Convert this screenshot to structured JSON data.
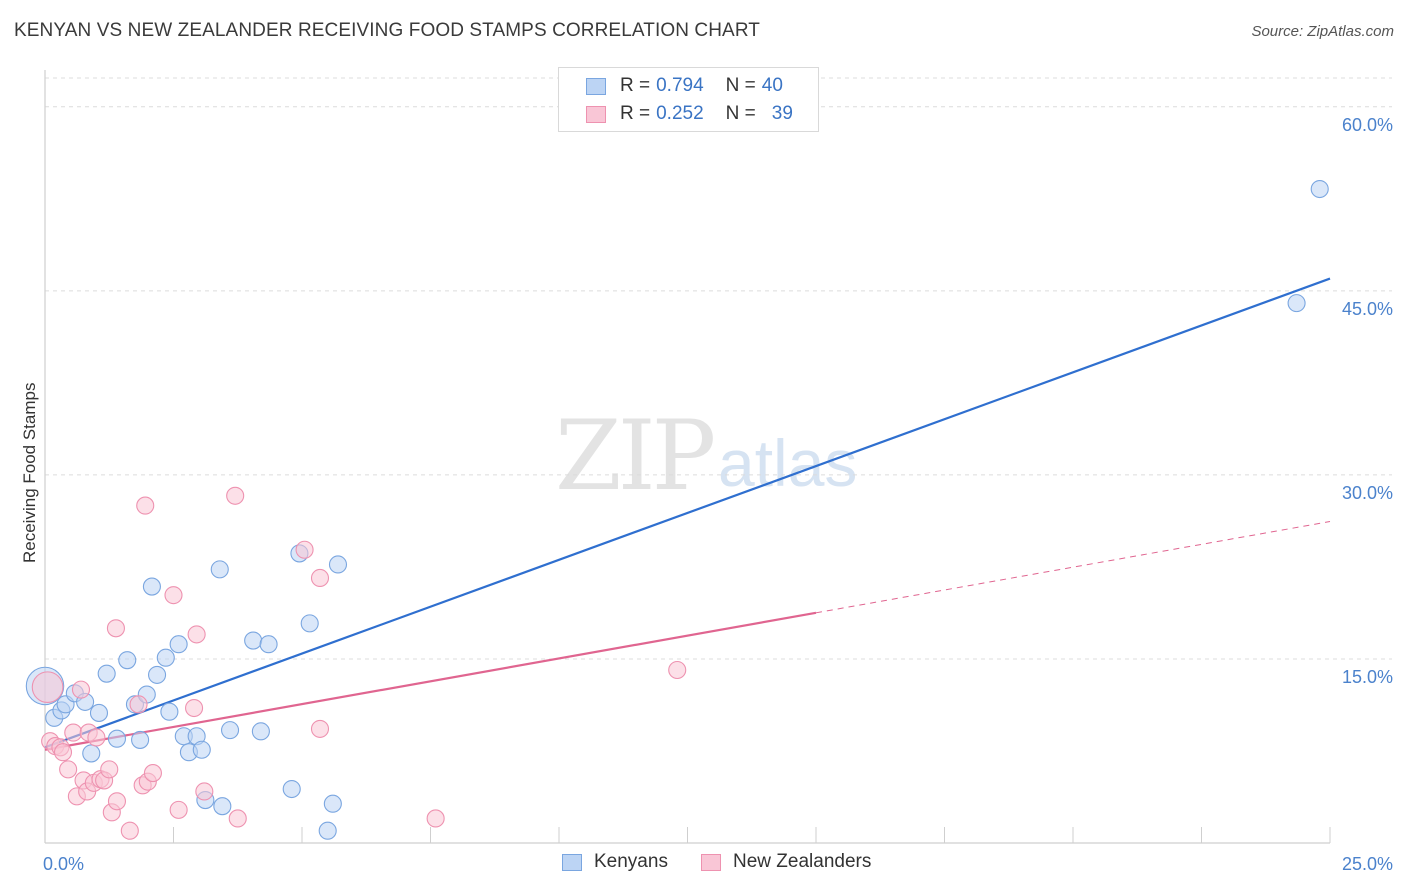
{
  "header": {
    "title": "KENYAN VS NEW ZEALANDER RECEIVING FOOD STAMPS CORRELATION CHART",
    "source": "Source: ZipAtlas.com"
  },
  "watermark": {
    "zip": "ZIP",
    "atlas": "atlas"
  },
  "legend": {
    "series": [
      {
        "r_label": "R = ",
        "r_value": "0.794",
        "n_label": "N = ",
        "n_value": "40"
      },
      {
        "r_label": "R = ",
        "r_value": "0.252",
        "n_label": "N = ",
        "n_value": "39"
      }
    ]
  },
  "colors": {
    "kenyans_fill": "#bcd4f4",
    "kenyans_stroke": "#7aa6e0",
    "kenyans_line": "#2f6fcf",
    "nz_fill": "#f9c6d6",
    "nz_stroke": "#ee92b0",
    "nz_line": "#e06590",
    "tick_label": "#4b82cc",
    "grid": "#dcdcdc"
  },
  "chart_data": {
    "type": "scatter",
    "title": "KENYAN VS NEW ZEALANDER RECEIVING FOOD STAMPS CORRELATION CHART",
    "xlabel": "",
    "ylabel": "Receiving Food Stamps",
    "xlim": [
      0,
      25
    ],
    "ylim": [
      0,
      63
    ],
    "x_tick_labels": [
      "0.0%",
      "25.0%"
    ],
    "y_ticks": [
      15,
      30,
      45,
      60
    ],
    "y_tick_labels": [
      "15.0%",
      "30.0%",
      "45.0%",
      "60.0%"
    ],
    "legend_bottom": [
      "Kenyans",
      "New Zealanders"
    ],
    "series": [
      {
        "name": "Kenyans",
        "r": 0.794,
        "n": 40,
        "points": [
          [
            0.0,
            12.8,
            2.2
          ],
          [
            0.18,
            10.2,
            1
          ],
          [
            0.32,
            10.8,
            1
          ],
          [
            0.4,
            11.3,
            1
          ],
          [
            0.58,
            12.2,
            1
          ],
          [
            0.78,
            11.5,
            1
          ],
          [
            0.9,
            7.3,
            1
          ],
          [
            1.05,
            10.6,
            1
          ],
          [
            1.2,
            13.8,
            1
          ],
          [
            1.4,
            8.5,
            1
          ],
          [
            1.6,
            14.9,
            1
          ],
          [
            1.75,
            11.3,
            1
          ],
          [
            1.85,
            8.4,
            1
          ],
          [
            1.98,
            12.1,
            1
          ],
          [
            2.08,
            20.9,
            1
          ],
          [
            2.18,
            13.7,
            1
          ],
          [
            2.35,
            15.1,
            1
          ],
          [
            2.42,
            10.7,
            1
          ],
          [
            2.6,
            16.2,
            1
          ],
          [
            2.7,
            8.7,
            1
          ],
          [
            2.8,
            7.4,
            1
          ],
          [
            2.95,
            8.7,
            1
          ],
          [
            3.05,
            7.6,
            1
          ],
          [
            3.12,
            3.5,
            1
          ],
          [
            3.45,
            3.0,
            1
          ],
          [
            3.6,
            9.2,
            1
          ],
          [
            3.4,
            22.3,
            1
          ],
          [
            4.05,
            16.5,
            1
          ],
          [
            4.2,
            9.1,
            1
          ],
          [
            4.35,
            16.2,
            1
          ],
          [
            4.8,
            4.4,
            1
          ],
          [
            4.95,
            23.6,
            1
          ],
          [
            5.15,
            17.9,
            1
          ],
          [
            5.5,
            1.0,
            1
          ],
          [
            5.6,
            3.2,
            1
          ],
          [
            5.7,
            22.7,
            1
          ],
          [
            24.35,
            44.0,
            1
          ],
          [
            24.8,
            53.3,
            1
          ]
        ],
        "trend": {
          "x": [
            0.0,
            25.0
          ],
          "y": [
            7.8,
            46.0
          ],
          "dashed_from_x": null
        }
      },
      {
        "name": "New Zealanders",
        "r": 0.252,
        "n": 39,
        "points": [
          [
            0.05,
            12.7,
            1.8
          ],
          [
            0.1,
            8.3,
            1
          ],
          [
            0.2,
            7.9,
            1
          ],
          [
            0.3,
            7.8,
            1
          ],
          [
            0.35,
            7.4,
            1
          ],
          [
            0.45,
            6.0,
            1
          ],
          [
            0.55,
            9.0,
            1
          ],
          [
            0.62,
            3.8,
            1
          ],
          [
            0.7,
            12.5,
            1
          ],
          [
            0.75,
            5.1,
            1
          ],
          [
            0.82,
            4.2,
            1
          ],
          [
            0.85,
            9.0,
            1
          ],
          [
            0.95,
            4.9,
            1
          ],
          [
            1.0,
            8.6,
            1
          ],
          [
            1.08,
            5.2,
            1
          ],
          [
            1.15,
            5.1,
            1
          ],
          [
            1.25,
            6.0,
            1
          ],
          [
            1.3,
            2.5,
            1
          ],
          [
            1.4,
            3.4,
            1
          ],
          [
            1.38,
            17.5,
            1
          ],
          [
            1.65,
            1.0,
            1
          ],
          [
            1.82,
            11.3,
            1
          ],
          [
            1.9,
            4.7,
            1
          ],
          [
            1.95,
            27.5,
            1
          ],
          [
            2.0,
            5.0,
            1
          ],
          [
            2.1,
            5.7,
            1
          ],
          [
            2.5,
            20.2,
            1
          ],
          [
            2.6,
            2.7,
            1
          ],
          [
            2.9,
            11.0,
            1
          ],
          [
            2.95,
            17.0,
            1
          ],
          [
            3.1,
            4.2,
            1
          ],
          [
            3.7,
            28.3,
            1
          ],
          [
            3.75,
            2.0,
            1
          ],
          [
            5.05,
            23.9,
            1
          ],
          [
            5.35,
            21.6,
            1
          ],
          [
            5.35,
            9.3,
            1
          ],
          [
            7.6,
            2.0,
            1
          ],
          [
            12.3,
            14.1,
            1
          ]
        ],
        "trend": {
          "x": [
            0.0,
            25.0
          ],
          "y": [
            7.6,
            26.2
          ],
          "dashed_from_x": 15.0
        }
      }
    ]
  }
}
